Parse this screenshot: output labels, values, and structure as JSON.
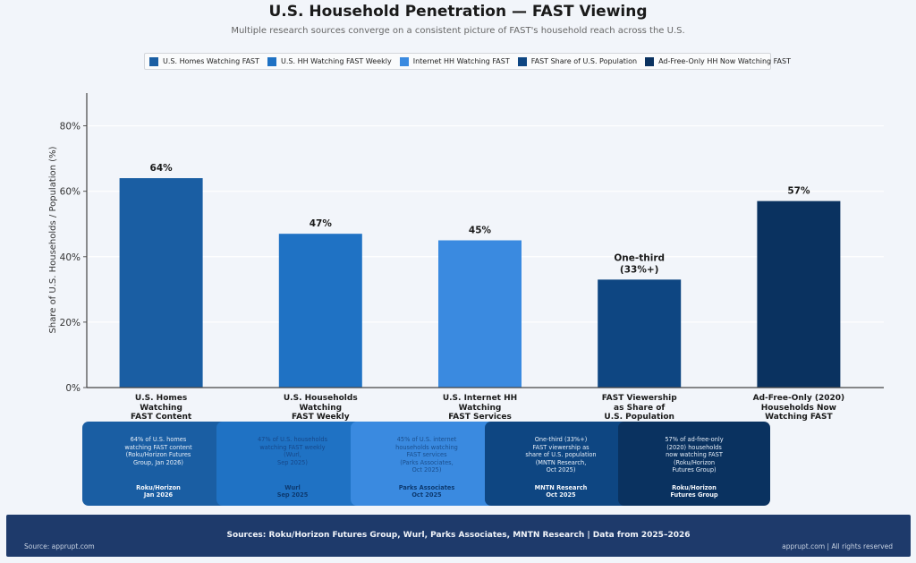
{
  "header": {
    "title": "U.S. Household Penetration — FAST Viewing",
    "subtitle": "Multiple research sources converge on a consistent picture of FAST's household reach across the U.S."
  },
  "chart_data": {
    "type": "bar",
    "title": "U.S. Household Penetration — FAST Viewing",
    "xlabel": "",
    "ylabel": "Share of U.S. Households / Population (%)",
    "ylim": [
      0,
      90
    ],
    "yticks": [
      0,
      20,
      40,
      60,
      80
    ],
    "ytick_labels": [
      "0%",
      "20%",
      "40%",
      "60%",
      "80%"
    ],
    "grid": "horizontal",
    "legend_position": "top-center",
    "categories": [
      "U.S. Homes\nWatching\nFAST Content",
      "U.S. Households\nWatching\nFAST Weekly",
      "U.S. Internet HH\nWatching\nFAST Services",
      "FAST Viewership\nas Share of\nU.S. Population",
      "Ad-Free-Only (2020)\nHouseholds Now\nWatching FAST"
    ],
    "values": [
      64,
      47,
      45,
      33,
      57
    ],
    "data_labels": [
      "64%",
      "47%",
      "45%",
      "One-third\n(33%+)",
      "57%"
    ],
    "colors": [
      "#1a5ea3",
      "#1f72c4",
      "#3a8ae0",
      "#0e4682",
      "#0a3260"
    ],
    "legend": [
      "U.S. Homes Watching FAST",
      "U.S. HH Watching FAST Weekly",
      "Internet HH Watching FAST",
      "FAST Share of U.S. Population",
      "Ad-Free-Only HH Now Watching FAST"
    ]
  },
  "cards": [
    {
      "desc": "64% of U.S. homes\nwatching FAST content\n(Roku/Horizon Futures\nGroup, Jan 2026)",
      "source": "Roku/Horizon\nJan 2026",
      "bg": "#1a5ea3",
      "text": "#e6eef8"
    },
    {
      "desc": "47% of U.S. households\nwatching FAST weekly\n(Wurl,\nSep 2025)",
      "source": "Wurl\nSep 2025",
      "bg": "#1f72c4",
      "text": "#16488a"
    },
    {
      "desc": "45% of U.S. internet\nhouseholds watching\nFAST services\n(Parks Associates,\nOct 2025)",
      "source": "Parks Associates\nOct 2025",
      "bg": "#3a8ae0",
      "text": "#1a4f8e"
    },
    {
      "desc": "One-third (33%+)\nFAST viewership as\nshare of U.S. population\n(MNTN Research,\nOct 2025)",
      "source": "MNTN Research\nOct 2025",
      "bg": "#0e4682",
      "text": "#e6eef8"
    },
    {
      "desc": "57% of ad-free-only\n(2020) households\nnow watching FAST\n(Roku/Horizon\nFutures Group)",
      "source": "Roku/Horizon\nFutures Group",
      "bg": "#0a3260",
      "text": "#e6eef8"
    }
  ],
  "footer": {
    "main": "Sources: Roku/Horizon Futures Group, Wurl, Parks Associates, MNTN Research   |   Data from 2025–2026",
    "left": "Source: apprupt.com",
    "right": "apprupt.com  |  All rights reserved"
  }
}
